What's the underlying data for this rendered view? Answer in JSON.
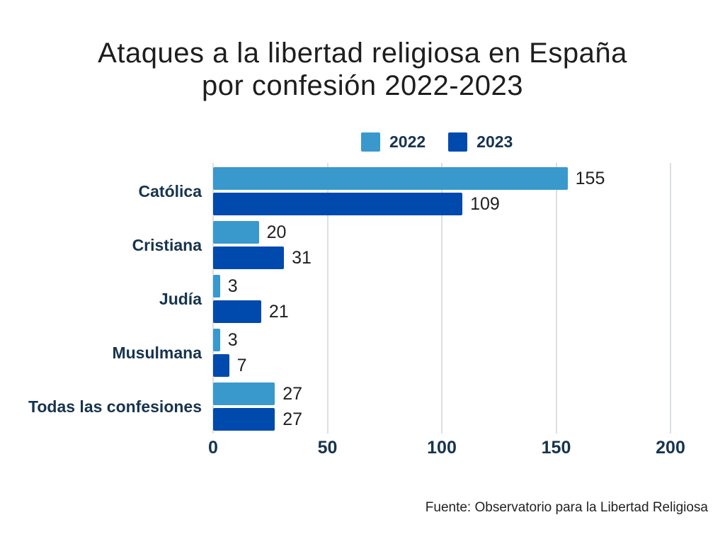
{
  "title": {
    "line1": "Ataques a la libertad religiosa en España",
    "line2": "por confesión 2022-2023"
  },
  "legend": {
    "items": [
      {
        "label": "2022",
        "color": "#3999CC"
      },
      {
        "label": "2023",
        "color": "#004AAD"
      }
    ]
  },
  "source_note": "Fuente: Observatorio para la Libertad Religiosa",
  "colors": {
    "series_2022": "#3999CC",
    "series_2023": "#004AAD",
    "navy_text": "#17344E",
    "gridline": "#DCDFE2",
    "title_text": "#1E1E1E",
    "background": "#FFFFFF"
  },
  "chart_data": {
    "type": "bar",
    "orientation": "horizontal",
    "title": "Ataques a la libertad religiosa en España por confesión 2022-2023",
    "categories": [
      "Católica",
      "Cristiana",
      "Judía",
      "Musulmana",
      "Todas las confesiones"
    ],
    "series": [
      {
        "name": "2022",
        "color": "#3999CC",
        "values": [
          155,
          20,
          3,
          3,
          27
        ]
      },
      {
        "name": "2023",
        "color": "#004AAD",
        "values": [
          109,
          31,
          21,
          7,
          27
        ]
      }
    ],
    "xlim": [
      0,
      200
    ],
    "xticks": [
      0,
      50,
      100,
      150,
      200
    ],
    "grid": true,
    "value_labels": true,
    "legend_position": "top-center",
    "source": "Fuente: Observatorio para la Libertad Religiosa"
  }
}
